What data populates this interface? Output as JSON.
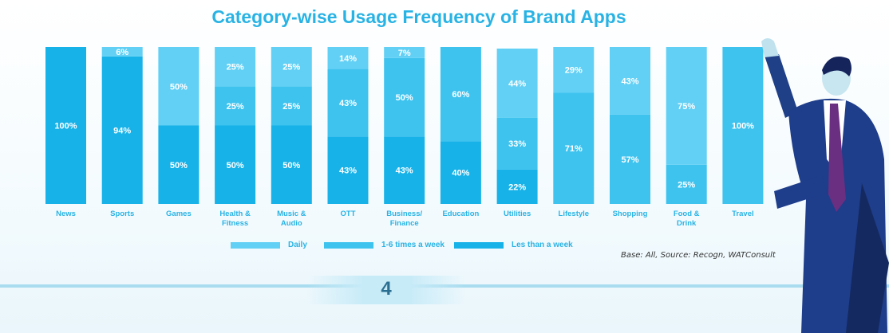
{
  "chart_data": {
    "type": "bar",
    "stacked": true,
    "title": "Category-wise Usage Frequency of Brand Apps",
    "categories": [
      "News",
      "Sports",
      "Games",
      "Health & Fitness",
      "Music & Audio",
      "OTT",
      "Business/ Finance",
      "Education",
      "Utilities",
      "Lifestyle",
      "Shopping",
      "Food & Drink",
      "Travel"
    ],
    "category_lines": [
      [
        "News"
      ],
      [
        "Sports"
      ],
      [
        "Games"
      ],
      [
        "Health &",
        "Fitness"
      ],
      [
        "Music &",
        "Audio"
      ],
      [
        "OTT"
      ],
      [
        "Business/",
        "Finance"
      ],
      [
        "Education"
      ],
      [
        "Utilities"
      ],
      [
        "Lifestyle"
      ],
      [
        "Shopping"
      ],
      [
        "Food &",
        "Drink"
      ],
      [
        "Travel"
      ]
    ],
    "series": [
      {
        "name": "Les than a week",
        "color": "#17b2e8",
        "values": [
          100,
          94,
          50,
          50,
          50,
          43,
          43,
          40,
          22,
          0,
          0,
          0,
          0
        ]
      },
      {
        "name": "1-6 times a week",
        "color": "#3ec3ef",
        "values": [
          0,
          0,
          0,
          25,
          25,
          43,
          50,
          60,
          33,
          71,
          57,
          25,
          100
        ]
      },
      {
        "name": "Daily",
        "color": "#62d0f5",
        "values": [
          0,
          6,
          50,
          25,
          25,
          14,
          7,
          0,
          44,
          29,
          43,
          75,
          0
        ]
      }
    ],
    "legend_order": [
      "Daily",
      "1-6 times a week",
      "Les than a week"
    ],
    "value_format": "percent",
    "ylim": [
      0,
      100
    ],
    "grid": false,
    "legend_position": "bottom"
  },
  "source": "Base: All, Source: Recogn, WATConsult",
  "page_number": "4"
}
